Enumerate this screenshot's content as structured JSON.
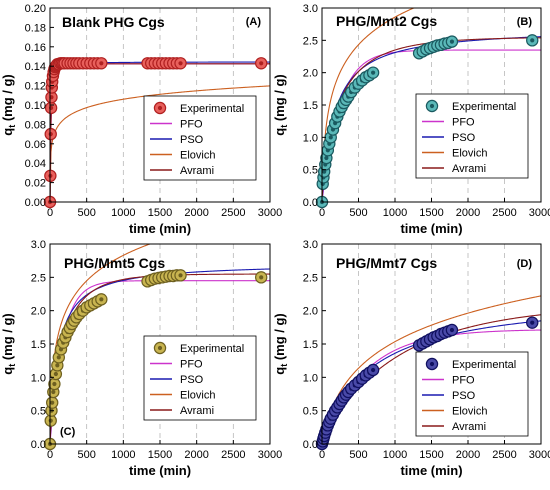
{
  "chart_data": [
    {
      "type": "scatter",
      "title": "Blank PHG Cgs",
      "panel_label": "(A)",
      "xlabel": "time (min)",
      "ylabel_main": "q",
      "ylabel_sub": "t",
      "ylabel_unit": " (mg / g)",
      "xlim": [
        0,
        3000
      ],
      "ylim": [
        0,
        0.2
      ],
      "xticks": [
        "0",
        "500",
        "1000",
        "1500",
        "2000",
        "2500",
        "3000"
      ],
      "yticks": [
        "0.00",
        "0.02",
        "0.04",
        "0.06",
        "0.08",
        "0.10",
        "0.12",
        "0.14",
        "0.16",
        "0.18",
        "0.20"
      ],
      "legend": {
        "position": "center-right",
        "entries": [
          "Experimental",
          "PFO",
          "PSO",
          "Elovich",
          "Avrami"
        ]
      },
      "marker_fill": "#e8605c",
      "marker_edge": "#b02020",
      "experimental": {
        "x": [
          0,
          5,
          10,
          15,
          20,
          25,
          30,
          40,
          50,
          60,
          70,
          80,
          90,
          100,
          120,
          140,
          160,
          180,
          200,
          240,
          280,
          320,
          360,
          400,
          450,
          500,
          550,
          600,
          650,
          700,
          1330,
          1380,
          1430,
          1480,
          1530,
          1580,
          1630,
          1680,
          1730,
          1780,
          2880
        ],
        "y": [
          0,
          0.027,
          0.07,
          0.097,
          0.108,
          0.118,
          0.124,
          0.13,
          0.134,
          0.137,
          0.139,
          0.14,
          0.141,
          0.142,
          0.142,
          0.143,
          0.143,
          0.143,
          0.143,
          0.143,
          0.143,
          0.143,
          0.143,
          0.143,
          0.143,
          0.143,
          0.143,
          0.143,
          0.143,
          0.143,
          0.143,
          0.143,
          0.143,
          0.143,
          0.143,
          0.143,
          0.143,
          0.143,
          0.143,
          0.143,
          0.143
        ]
      },
      "models": [
        {
          "name": "PFO",
          "type": "pfo",
          "qe": 0.1425,
          "k": 0.06,
          "color": "#cc33cc"
        },
        {
          "name": "PSO",
          "type": "pso",
          "qe": 0.1445,
          "k": 1.6,
          "color": "#1a1ab0"
        },
        {
          "name": "Elovich",
          "type": "elovich",
          "a": 0.06,
          "b": 80,
          "color": "#cc6020"
        },
        {
          "name": "Avrami",
          "type": "avrami",
          "qe": 0.1425,
          "k": 0.065,
          "n": 0.92,
          "color": "#8a1a1a"
        }
      ]
    },
    {
      "type": "scatter",
      "title": "PHG/Mmt2 Cgs",
      "panel_label": "(B)",
      "xlabel": "time (min)",
      "ylabel_main": "q",
      "ylabel_sub": "t",
      "ylabel_unit": " (mg / g)",
      "xlim": [
        0,
        3000
      ],
      "ylim": [
        0,
        3
      ],
      "xticks": [
        "0",
        "500",
        "1000",
        "1500",
        "2000",
        "2500",
        "3000"
      ],
      "yticks": [
        "0.0",
        "0.5",
        "1.0",
        "1.5",
        "2.0",
        "2.5",
        "3.0"
      ],
      "legend": {
        "position": "bottom-right",
        "entries": [
          "Experimental",
          "PFO",
          "PSO",
          "Elovich",
          "Avrami"
        ]
      },
      "marker_fill": "#5ab8b8",
      "marker_edge": "#1a5a60",
      "experimental": {
        "x": [
          0,
          10,
          20,
          30,
          45,
          60,
          80,
          100,
          120,
          150,
          180,
          210,
          240,
          270,
          300,
          330,
          360,
          400,
          450,
          500,
          550,
          600,
          650,
          700,
          1330,
          1380,
          1430,
          1480,
          1530,
          1580,
          1630,
          1680,
          1730,
          1780,
          2880
        ],
        "y": [
          0,
          0.28,
          0.38,
          0.47,
          0.58,
          0.68,
          0.8,
          0.9,
          1.0,
          1.12,
          1.22,
          1.32,
          1.4,
          1.47,
          1.53,
          1.58,
          1.63,
          1.7,
          1.77,
          1.83,
          1.88,
          1.93,
          1.96,
          2.0,
          2.3,
          2.33,
          2.36,
          2.38,
          2.4,
          2.42,
          2.43,
          2.45,
          2.46,
          2.48,
          2.5
        ]
      },
      "models": [
        {
          "name": "PFO",
          "type": "pfo",
          "qe": 2.35,
          "k": 0.0042,
          "color": "#cc33cc"
        },
        {
          "name": "PSO",
          "type": "pso",
          "qe": 2.7,
          "k": 0.0022,
          "color": "#1a1ab0"
        },
        {
          "name": "Elovich",
          "type": "elovich",
          "a": 0.06,
          "b": 1.6,
          "color": "#cc6020"
        },
        {
          "name": "Avrami",
          "type": "avrami",
          "qe": 2.55,
          "k": 0.0038,
          "n": 0.7,
          "color": "#8a1a1a"
        }
      ]
    },
    {
      "type": "scatter",
      "title": "PHG/Mmt5 Cgs",
      "panel_label": "(C)",
      "xlabel": "time (min)",
      "ylabel_main": "q",
      "ylabel_sub": "t",
      "ylabel_unit": " (mg / g)",
      "xlim": [
        0,
        3000
      ],
      "ylim": [
        0,
        3
      ],
      "xticks": [
        "0",
        "500",
        "1000",
        "1500",
        "2000",
        "2500",
        "3000"
      ],
      "yticks": [
        "0.0",
        "0.5",
        "1.0",
        "1.5",
        "2.0",
        "2.5",
        "3.0"
      ],
      "legend": {
        "position": "bottom-right",
        "entries": [
          "Experimental",
          "PFO",
          "PSO",
          "Elovich",
          "Avrami"
        ]
      },
      "marker_fill": "#c8b450",
      "marker_edge": "#6e6020",
      "experimental": {
        "x": [
          0,
          10,
          20,
          30,
          45,
          60,
          80,
          100,
          120,
          150,
          180,
          210,
          240,
          270,
          300,
          330,
          360,
          400,
          450,
          500,
          550,
          600,
          650,
          700,
          1330,
          1380,
          1430,
          1480,
          1530,
          1580,
          1630,
          1680,
          1730,
          1780,
          2880
        ],
        "y": [
          0,
          0.35,
          0.5,
          0.62,
          0.78,
          0.9,
          1.05,
          1.18,
          1.3,
          1.42,
          1.52,
          1.6,
          1.68,
          1.74,
          1.8,
          1.85,
          1.9,
          1.95,
          2.0,
          2.05,
          2.08,
          2.11,
          2.14,
          2.17,
          2.44,
          2.46,
          2.48,
          2.49,
          2.5,
          2.51,
          2.52,
          2.52,
          2.53,
          2.53,
          2.5
        ]
      },
      "models": [
        {
          "name": "PFO",
          "type": "pfo",
          "qe": 2.45,
          "k": 0.0058,
          "color": "#cc33cc"
        },
        {
          "name": "PSO",
          "type": "pso",
          "qe": 2.72,
          "k": 0.0034,
          "color": "#1a1ab0"
        },
        {
          "name": "Elovich",
          "type": "elovich",
          "a": 0.09,
          "b": 1.8,
          "color": "#cc6020"
        },
        {
          "name": "Avrami",
          "type": "avrami",
          "qe": 2.55,
          "k": 0.0052,
          "n": 0.75,
          "color": "#8a1a1a"
        }
      ]
    },
    {
      "type": "scatter",
      "title": "PHG/Mmt7 Cgs",
      "panel_label": "(D)",
      "xlabel": "time (min)",
      "ylabel_main": "q",
      "ylabel_sub": "t",
      "ylabel_unit": " (mg / g)",
      "xlim": [
        0,
        3000
      ],
      "ylim": [
        0,
        3
      ],
      "xticks": [
        "0",
        "500",
        "1000",
        "1500",
        "2000",
        "2500",
        "3000"
      ],
      "yticks": [
        "0.0",
        "0.5",
        "1.0",
        "1.5",
        "2.0",
        "2.5",
        "3.0"
      ],
      "legend": {
        "position": "bottom-right",
        "entries": [
          "Experimental",
          "PFO",
          "PSO",
          "Elovich",
          "Avrami"
        ]
      },
      "marker_fill": "#4a4aa8",
      "marker_edge": "#101060",
      "experimental": {
        "x": [
          0,
          10,
          20,
          30,
          45,
          60,
          80,
          100,
          120,
          150,
          180,
          210,
          240,
          270,
          300,
          330,
          360,
          400,
          450,
          500,
          550,
          600,
          650,
          700,
          1330,
          1380,
          1430,
          1480,
          1530,
          1580,
          1630,
          1680,
          1730,
          1780,
          2880
        ],
        "y": [
          0,
          0.04,
          0.08,
          0.12,
          0.17,
          0.22,
          0.28,
          0.33,
          0.38,
          0.44,
          0.5,
          0.55,
          0.6,
          0.65,
          0.7,
          0.74,
          0.78,
          0.83,
          0.88,
          0.93,
          0.98,
          1.03,
          1.07,
          1.11,
          1.48,
          1.51,
          1.54,
          1.57,
          1.6,
          1.62,
          1.65,
          1.67,
          1.69,
          1.71,
          1.82
        ]
      },
      "models": [
        {
          "name": "PFO",
          "type": "pfo",
          "qe": 1.72,
          "k": 0.0017,
          "color": "#cc33cc"
        },
        {
          "name": "PSO",
          "type": "pso",
          "qe": 2.25,
          "k": 0.00068,
          "color": "#1a1ab0"
        },
        {
          "name": "Elovich",
          "type": "elovich",
          "a": 0.006,
          "b": 1.5,
          "color": "#cc6020"
        },
        {
          "name": "Avrami",
          "type": "avrami",
          "qe": 2.1,
          "k": 0.00095,
          "n": 0.9,
          "color": "#8a1a1a"
        }
      ]
    }
  ]
}
